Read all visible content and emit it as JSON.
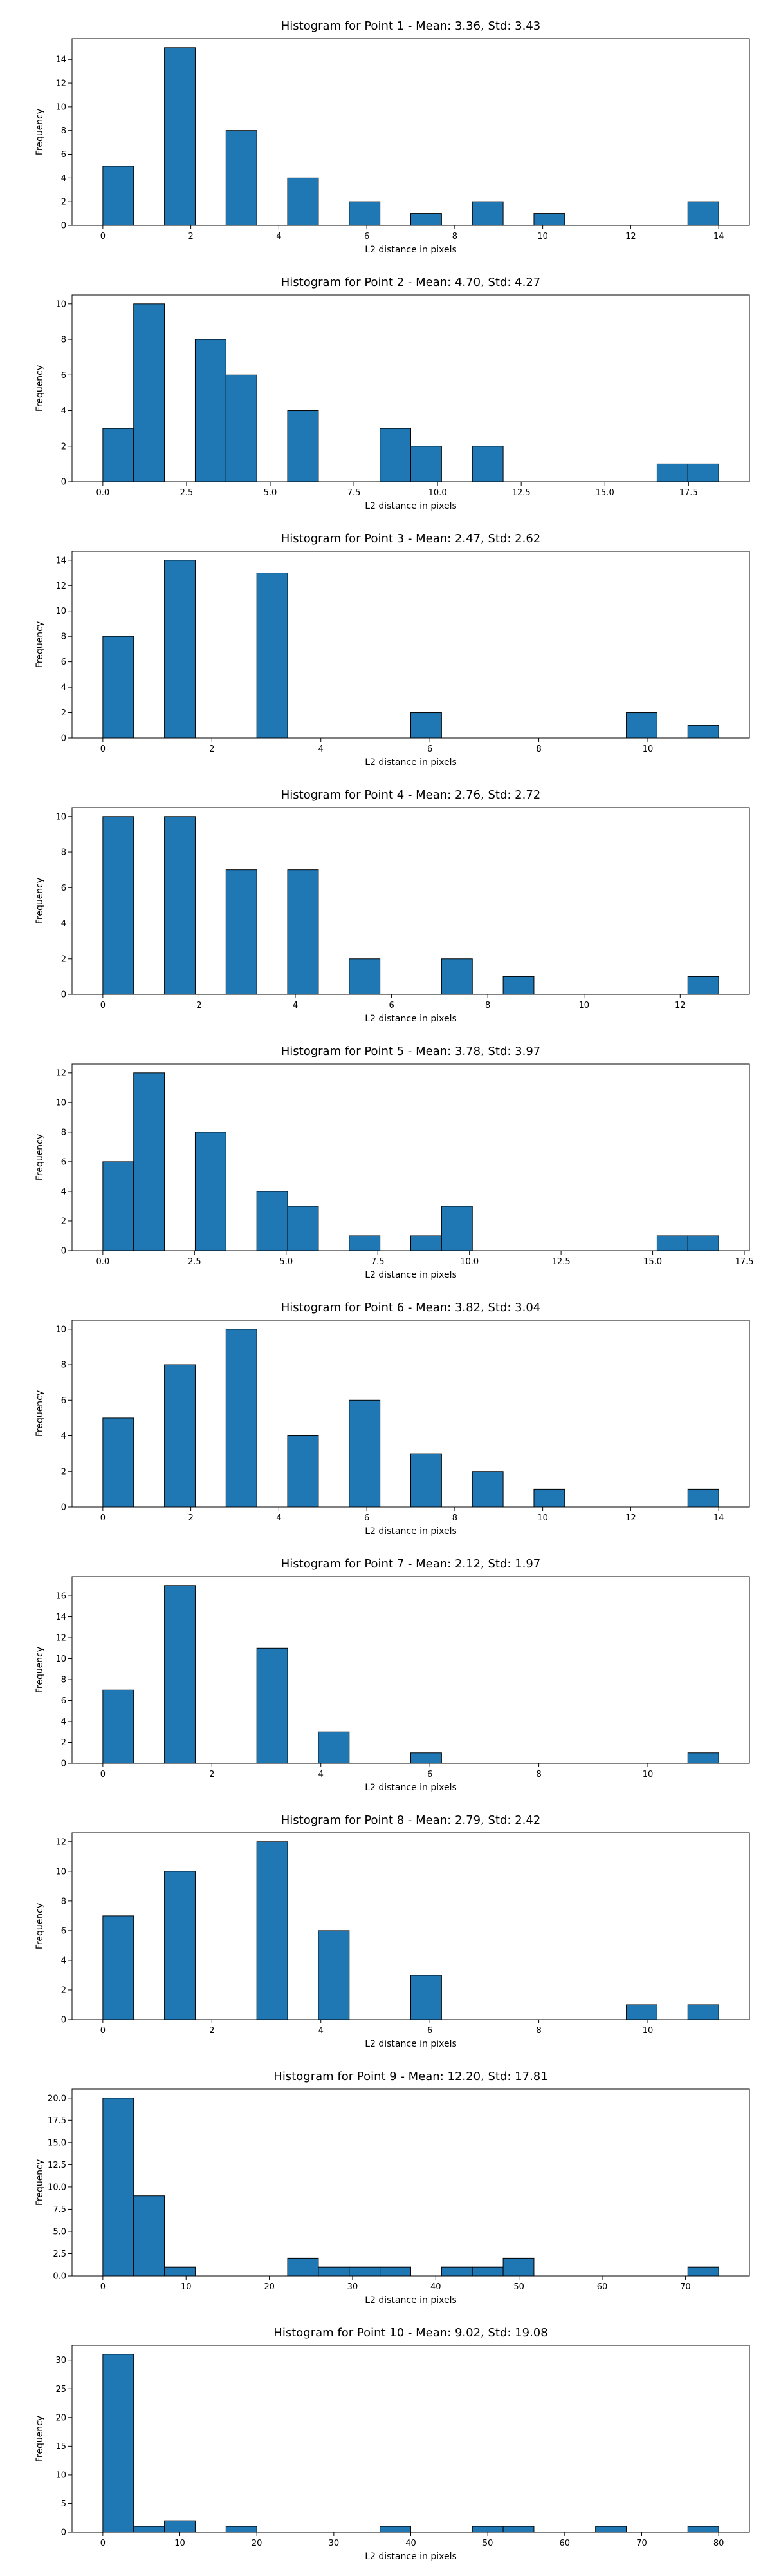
{
  "chart_data": [
    {
      "type": "bar",
      "title": "Histogram for Point 1 - Mean: 3.36, Std: 3.43",
      "xlabel": "L2 distance in pixels",
      "ylabel": "Frequency",
      "bins": [
        {
          "x0": 0,
          "x1": 0.7,
          "count": 5
        },
        {
          "x0": 1.4,
          "x1": 2.1,
          "count": 15
        },
        {
          "x0": 2.8,
          "x1": 3.5,
          "count": 8
        },
        {
          "x0": 4.2,
          "x1": 4.9,
          "count": 4
        },
        {
          "x0": 5.6,
          "x1": 6.3,
          "count": 2
        },
        {
          "x0": 7.0,
          "x1": 7.7,
          "count": 1
        },
        {
          "x0": 8.4,
          "x1": 9.1,
          "count": 2
        },
        {
          "x0": 9.8,
          "x1": 10.5,
          "count": 1
        },
        {
          "x0": 13.3,
          "x1": 14.0,
          "count": 2
        }
      ],
      "xlim": [
        -0.7,
        14.7
      ],
      "ylim": [
        0,
        15.75
      ],
      "xticks": [
        0,
        2,
        4,
        6,
        8,
        10,
        12,
        14
      ],
      "xtick_labels": [
        "0",
        "2",
        "4",
        "6",
        "8",
        "10",
        "12",
        "14"
      ],
      "yticks": [
        0,
        2,
        4,
        6,
        8,
        10,
        12,
        14
      ],
      "ytick_labels": [
        "0",
        "2",
        "4",
        "6",
        "8",
        "10",
        "12",
        "14"
      ],
      "color": "#1f77b4",
      "grid": false
    },
    {
      "type": "bar",
      "title": "Histogram for Point 2 - Mean: 4.70, Std: 4.27",
      "xlabel": "L2 distance in pixels",
      "ylabel": "Frequency",
      "bins": [
        {
          "x0": 0.0,
          "x1": 0.92,
          "count": 3
        },
        {
          "x0": 0.92,
          "x1": 1.84,
          "count": 10
        },
        {
          "x0": 2.76,
          "x1": 3.68,
          "count": 8
        },
        {
          "x0": 3.68,
          "x1": 4.6,
          "count": 6
        },
        {
          "x0": 5.52,
          "x1": 6.44,
          "count": 4
        },
        {
          "x0": 8.28,
          "x1": 9.2,
          "count": 3
        },
        {
          "x0": 9.2,
          "x1": 10.12,
          "count": 2
        },
        {
          "x0": 11.04,
          "x1": 11.96,
          "count": 2
        },
        {
          "x0": 16.56,
          "x1": 17.48,
          "count": 1
        },
        {
          "x0": 17.48,
          "x1": 18.4,
          "count": 1
        }
      ],
      "xlim": [
        -0.92,
        19.32
      ],
      "ylim": [
        0,
        10.5
      ],
      "xticks": [
        0,
        2.5,
        5,
        7.5,
        10,
        12.5,
        15,
        17.5
      ],
      "xtick_labels": [
        "0.0",
        "2.5",
        "5.0",
        "7.5",
        "10.0",
        "12.5",
        "15.0",
        "17.5"
      ],
      "yticks": [
        0,
        2,
        4,
        6,
        8,
        10
      ],
      "ytick_labels": [
        "0",
        "2",
        "4",
        "6",
        "8",
        "10"
      ],
      "color": "#1f77b4",
      "grid": false
    },
    {
      "type": "bar",
      "title": "Histogram for Point 3 - Mean: 2.47, Std: 2.62",
      "xlabel": "L2 distance in pixels",
      "ylabel": "Frequency",
      "bins": [
        {
          "x0": 0.0,
          "x1": 0.565,
          "count": 8
        },
        {
          "x0": 1.13,
          "x1": 1.695,
          "count": 14
        },
        {
          "x0": 2.825,
          "x1": 3.39,
          "count": 13
        },
        {
          "x0": 5.65,
          "x1": 6.215,
          "count": 2
        },
        {
          "x0": 9.605,
          "x1": 10.17,
          "count": 2
        },
        {
          "x0": 10.735,
          "x1": 11.3,
          "count": 1
        }
      ],
      "xlim": [
        -0.565,
        11.865
      ],
      "ylim": [
        0,
        14.7
      ],
      "xticks": [
        0,
        2,
        4,
        6,
        8,
        10
      ],
      "xtick_labels": [
        "0",
        "2",
        "4",
        "6",
        "8",
        "10"
      ],
      "yticks": [
        0,
        2,
        4,
        6,
        8,
        10,
        12,
        14
      ],
      "ytick_labels": [
        "0",
        "2",
        "4",
        "6",
        "8",
        "10",
        "12",
        "14"
      ],
      "color": "#1f77b4",
      "grid": false
    },
    {
      "type": "bar",
      "title": "Histogram for Point 4 - Mean: 2.76, Std: 2.72",
      "xlabel": "L2 distance in pixels",
      "ylabel": "Frequency",
      "bins": [
        {
          "x0": 0.0,
          "x1": 0.64,
          "count": 10
        },
        {
          "x0": 1.28,
          "x1": 1.92,
          "count": 10
        },
        {
          "x0": 2.56,
          "x1": 3.2,
          "count": 7
        },
        {
          "x0": 3.84,
          "x1": 4.48,
          "count": 7
        },
        {
          "x0": 5.12,
          "x1": 5.76,
          "count": 2
        },
        {
          "x0": 7.04,
          "x1": 7.68,
          "count": 2
        },
        {
          "x0": 8.32,
          "x1": 8.96,
          "count": 1
        },
        {
          "x0": 12.16,
          "x1": 12.8,
          "count": 1
        }
      ],
      "xlim": [
        -0.64,
        13.44
      ],
      "ylim": [
        0,
        10.5
      ],
      "xticks": [
        0,
        2,
        4,
        6,
        8,
        10,
        12
      ],
      "xtick_labels": [
        "0",
        "2",
        "4",
        "6",
        "8",
        "10",
        "12"
      ],
      "yticks": [
        0,
        2,
        4,
        6,
        8,
        10
      ],
      "ytick_labels": [
        "0",
        "2",
        "4",
        "6",
        "8",
        "10"
      ],
      "color": "#1f77b4",
      "grid": false
    },
    {
      "type": "bar",
      "title": "Histogram for Point 5 - Mean: 3.78, Std: 3.97",
      "xlabel": "L2 distance in pixels",
      "ylabel": "Frequency",
      "bins": [
        {
          "x0": 0.0,
          "x1": 0.84,
          "count": 6
        },
        {
          "x0": 0.84,
          "x1": 1.68,
          "count": 12
        },
        {
          "x0": 2.52,
          "x1": 3.36,
          "count": 8
        },
        {
          "x0": 4.2,
          "x1": 5.04,
          "count": 4
        },
        {
          "x0": 5.04,
          "x1": 5.88,
          "count": 3
        },
        {
          "x0": 6.72,
          "x1": 7.56,
          "count": 1
        },
        {
          "x0": 8.4,
          "x1": 9.24,
          "count": 1
        },
        {
          "x0": 9.24,
          "x1": 10.08,
          "count": 3
        },
        {
          "x0": 15.12,
          "x1": 15.96,
          "count": 1
        },
        {
          "x0": 15.96,
          "x1": 16.8,
          "count": 1
        }
      ],
      "xlim": [
        -0.84,
        17.64
      ],
      "ylim": [
        0,
        12.6
      ],
      "xticks": [
        0,
        2.5,
        5,
        7.5,
        10,
        12.5,
        15,
        17.5
      ],
      "xtick_labels": [
        "0.0",
        "2.5",
        "5.0",
        "7.5",
        "10.0",
        "12.5",
        "15.0",
        "17.5"
      ],
      "yticks": [
        0,
        2,
        4,
        6,
        8,
        10,
        12
      ],
      "ytick_labels": [
        "0",
        "2",
        "4",
        "6",
        "8",
        "10",
        "12"
      ],
      "color": "#1f77b4",
      "grid": false
    },
    {
      "type": "bar",
      "title": "Histogram for Point 6 - Mean: 3.82, Std: 3.04",
      "xlabel": "L2 distance in pixels",
      "ylabel": "Frequency",
      "bins": [
        {
          "x0": 0.0,
          "x1": 0.7,
          "count": 5
        },
        {
          "x0": 1.4,
          "x1": 2.1,
          "count": 8
        },
        {
          "x0": 2.8,
          "x1": 3.5,
          "count": 10
        },
        {
          "x0": 4.2,
          "x1": 4.9,
          "count": 4
        },
        {
          "x0": 5.6,
          "x1": 6.3,
          "count": 6
        },
        {
          "x0": 7.0,
          "x1": 7.7,
          "count": 3
        },
        {
          "x0": 8.4,
          "x1": 9.1,
          "count": 2
        },
        {
          "x0": 9.8,
          "x1": 10.5,
          "count": 1
        },
        {
          "x0": 13.3,
          "x1": 14.0,
          "count": 1
        }
      ],
      "xlim": [
        -0.7,
        14.7
      ],
      "ylim": [
        0,
        10.5
      ],
      "xticks": [
        0,
        2,
        4,
        6,
        8,
        10,
        12,
        14
      ],
      "xtick_labels": [
        "0",
        "2",
        "4",
        "6",
        "8",
        "10",
        "12",
        "14"
      ],
      "yticks": [
        0,
        2,
        4,
        6,
        8,
        10
      ],
      "ytick_labels": [
        "0",
        "2",
        "4",
        "6",
        "8",
        "10"
      ],
      "color": "#1f77b4",
      "grid": false
    },
    {
      "type": "bar",
      "title": "Histogram for Point 7 - Mean: 2.12, Std: 1.97",
      "xlabel": "L2 distance in pixels",
      "ylabel": "Frequency",
      "bins": [
        {
          "x0": 0.0,
          "x1": 0.565,
          "count": 7
        },
        {
          "x0": 1.13,
          "x1": 1.695,
          "count": 17
        },
        {
          "x0": 2.825,
          "x1": 3.39,
          "count": 11
        },
        {
          "x0": 3.955,
          "x1": 4.52,
          "count": 3
        },
        {
          "x0": 5.65,
          "x1": 6.215,
          "count": 1
        },
        {
          "x0": 10.735,
          "x1": 11.3,
          "count": 1
        }
      ],
      "xlim": [
        -0.565,
        11.865
      ],
      "ylim": [
        0,
        17.85
      ],
      "xticks": [
        0,
        2,
        4,
        6,
        8,
        10
      ],
      "xtick_labels": [
        "0",
        "2",
        "4",
        "6",
        "8",
        "10"
      ],
      "yticks": [
        0,
        2,
        4,
        6,
        8,
        10,
        12,
        14,
        16
      ],
      "ytick_labels": [
        "0",
        "2",
        "4",
        "6",
        "8",
        "10",
        "12",
        "14",
        "16"
      ],
      "color": "#1f77b4",
      "grid": false
    },
    {
      "type": "bar",
      "title": "Histogram for Point 8 - Mean: 2.79, Std: 2.42",
      "xlabel": "L2 distance in pixels",
      "ylabel": "Frequency",
      "bins": [
        {
          "x0": 0.0,
          "x1": 0.565,
          "count": 7
        },
        {
          "x0": 1.13,
          "x1": 1.695,
          "count": 10
        },
        {
          "x0": 2.825,
          "x1": 3.39,
          "count": 12
        },
        {
          "x0": 3.955,
          "x1": 4.52,
          "count": 6
        },
        {
          "x0": 5.65,
          "x1": 6.215,
          "count": 3
        },
        {
          "x0": 9.605,
          "x1": 10.17,
          "count": 1
        },
        {
          "x0": 10.735,
          "x1": 11.3,
          "count": 1
        }
      ],
      "xlim": [
        -0.565,
        11.865
      ],
      "ylim": [
        0,
        12.6
      ],
      "xticks": [
        0,
        2,
        4,
        6,
        8,
        10
      ],
      "xtick_labels": [
        "0",
        "2",
        "4",
        "6",
        "8",
        "10"
      ],
      "yticks": [
        0,
        2,
        4,
        6,
        8,
        10,
        12
      ],
      "ytick_labels": [
        "0",
        "2",
        "4",
        "6",
        "8",
        "10",
        "12"
      ],
      "color": "#1f77b4",
      "grid": false
    },
    {
      "type": "bar",
      "title": "Histogram for Point 9 - Mean: 12.20, Std: 17.81",
      "xlabel": "L2 distance in pixels",
      "ylabel": "Frequency",
      "bins": [
        {
          "x0": 0.0,
          "x1": 3.7,
          "count": 20
        },
        {
          "x0": 3.7,
          "x1": 7.4,
          "count": 9
        },
        {
          "x0": 7.4,
          "x1": 11.1,
          "count": 1
        },
        {
          "x0": 22.2,
          "x1": 25.9,
          "count": 2
        },
        {
          "x0": 25.9,
          "x1": 29.6,
          "count": 1
        },
        {
          "x0": 29.6,
          "x1": 33.3,
          "count": 1
        },
        {
          "x0": 33.3,
          "x1": 37.0,
          "count": 1
        },
        {
          "x0": 40.7,
          "x1": 44.4,
          "count": 1
        },
        {
          "x0": 44.4,
          "x1": 48.1,
          "count": 1
        },
        {
          "x0": 48.1,
          "x1": 51.8,
          "count": 2
        },
        {
          "x0": 70.3,
          "x1": 74.0,
          "count": 1
        }
      ],
      "xlim": [
        -3.7,
        77.7
      ],
      "ylim": [
        0,
        21.0
      ],
      "xticks": [
        0,
        10,
        20,
        30,
        40,
        50,
        60,
        70
      ],
      "xtick_labels": [
        "0",
        "10",
        "20",
        "30",
        "40",
        "50",
        "60",
        "70"
      ],
      "yticks": [
        0,
        2.5,
        5,
        7.5,
        10,
        12.5,
        15,
        17.5,
        20
      ],
      "ytick_labels": [
        "0.0",
        "2.5",
        "5.0",
        "7.5",
        "10.0",
        "12.5",
        "15.0",
        "17.5",
        "20.0"
      ],
      "color": "#1f77b4",
      "grid": false
    },
    {
      "type": "bar",
      "title": "Histogram for Point 10 - Mean: 9.02, Std: 19.08",
      "xlabel": "L2 distance in pixels",
      "ylabel": "Frequency",
      "bins": [
        {
          "x0": 0.0,
          "x1": 4.0,
          "count": 31
        },
        {
          "x0": 4.0,
          "x1": 8.0,
          "count": 1
        },
        {
          "x0": 8.0,
          "x1": 12.0,
          "count": 2
        },
        {
          "x0": 16.0,
          "x1": 20.0,
          "count": 1
        },
        {
          "x0": 36.0,
          "x1": 40.0,
          "count": 1
        },
        {
          "x0": 48.0,
          "x1": 52.0,
          "count": 1
        },
        {
          "x0": 52.0,
          "x1": 56.0,
          "count": 1
        },
        {
          "x0": 64.0,
          "x1": 68.0,
          "count": 1
        },
        {
          "x0": 76.0,
          "x1": 80.0,
          "count": 1
        }
      ],
      "xlim": [
        -4.0,
        84.0
      ],
      "ylim": [
        0,
        32.55
      ],
      "xticks": [
        0,
        10,
        20,
        30,
        40,
        50,
        60,
        70,
        80
      ],
      "xtick_labels": [
        "0",
        "10",
        "20",
        "30",
        "40",
        "50",
        "60",
        "70",
        "80"
      ],
      "yticks": [
        0,
        5,
        10,
        15,
        20,
        25,
        30
      ],
      "ytick_labels": [
        "0",
        "5",
        "10",
        "15",
        "20",
        "25",
        "30"
      ],
      "color": "#1f77b4",
      "grid": false
    }
  ]
}
